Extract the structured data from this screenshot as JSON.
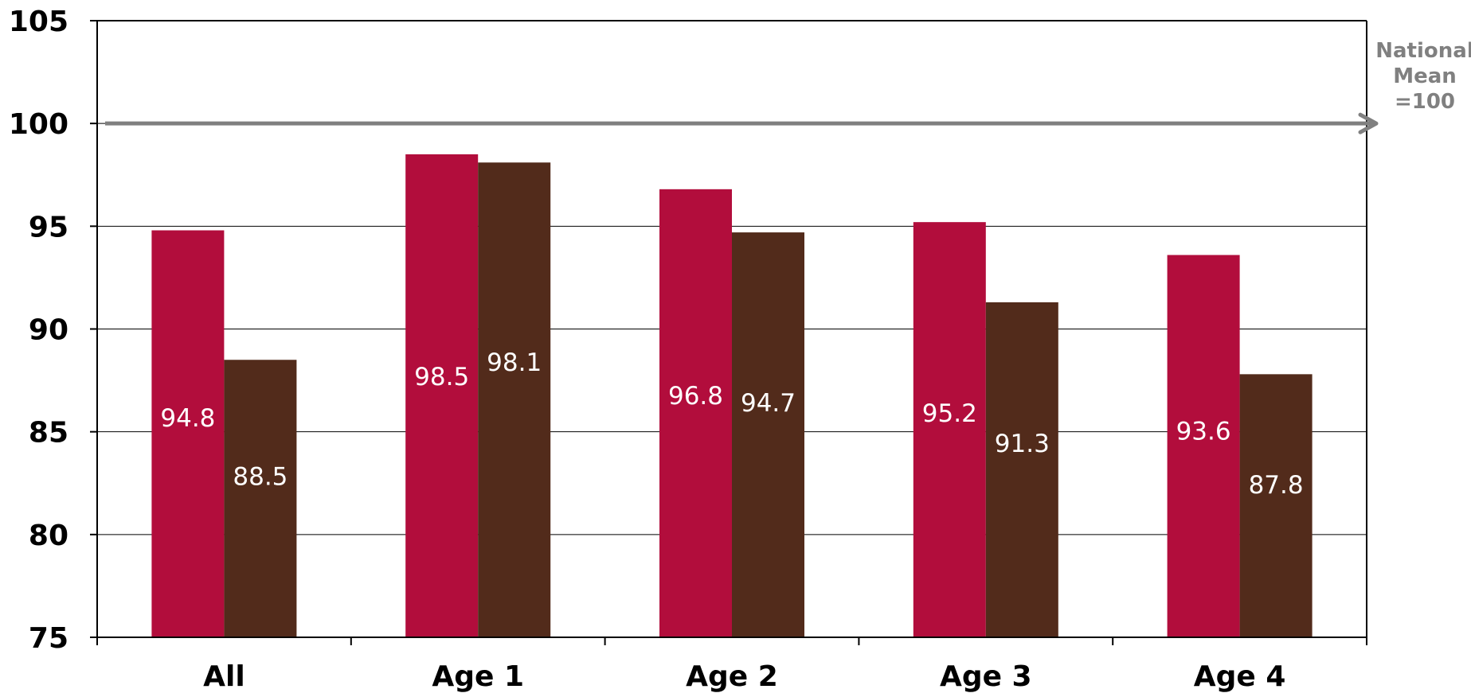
{
  "chart_data": {
    "type": "bar",
    "categories": [
      "All",
      "Age 1",
      "Age 2",
      "Age 3",
      "Age 4"
    ],
    "series": [
      {
        "values": [
          94.8,
          98.5,
          96.8,
          95.2,
          93.6
        ],
        "color": "#b20d3c"
      },
      {
        "values": [
          88.5,
          98.1,
          94.7,
          91.3,
          87.8
        ],
        "color": "#522b1b"
      }
    ],
    "data_labels": {
      "series_0": [
        "94.8",
        "98.5",
        "96.8",
        "95.2",
        "93.6"
      ],
      "series_1": [
        "88.5",
        "98.1",
        "94.7",
        "91.3",
        "87.8"
      ]
    },
    "ylim": [
      75,
      105
    ],
    "yticks": [
      75,
      80,
      85,
      90,
      95,
      100,
      105
    ],
    "ytick_labels": [
      "75",
      "80",
      "85",
      "90",
      "95",
      "100",
      "105"
    ],
    "grid": true,
    "legend": false,
    "reference_line": {
      "value": 100,
      "color": "#808080",
      "label_lines": [
        "National",
        "Mean",
        "=100"
      ]
    },
    "title": "",
    "xlabel": "",
    "ylabel": ""
  }
}
